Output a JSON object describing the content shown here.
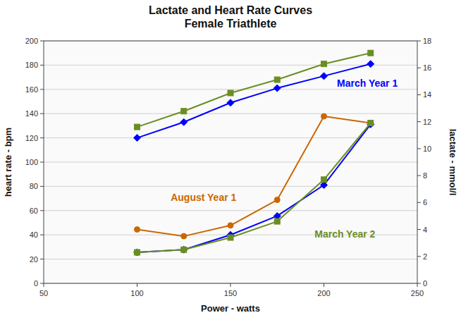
{
  "chart_data": {
    "type": "line",
    "title": "Lactate and Heart Rate Curves\nFemale Triathlete",
    "xlabel": "Power - watts",
    "ylabel": "heart rate - bpm",
    "y2label": "lactate - mmol/l",
    "x": [
      100,
      125,
      150,
      175,
      200,
      225
    ],
    "series": [
      {
        "color": "#0000FF",
        "marker": "diamond",
        "axis": "y",
        "values": [
          120,
          133,
          149,
          161,
          171,
          181
        ]
      },
      {
        "color": "#6B8E23",
        "marker": "square",
        "axis": "y",
        "values": [
          129,
          142,
          157,
          168,
          181,
          190
        ]
      },
      {
        "color": "#CC6600",
        "marker": "circle",
        "axis": "y2",
        "values": [
          4.0,
          3.5,
          4.3,
          6.2,
          12.4,
          11.9
        ]
      },
      {
        "color": "#0000FF",
        "marker": "diamond",
        "axis": "y2",
        "values": [
          2.3,
          2.5,
          3.6,
          5.0,
          7.3,
          11.8
        ]
      },
      {
        "color": "#6B8E23",
        "marker": "square",
        "axis": "y2",
        "values": [
          2.3,
          2.5,
          3.4,
          4.6,
          7.7,
          11.9
        ]
      }
    ],
    "xlim": [
      50,
      250
    ],
    "xticks": [
      50,
      100,
      150,
      200,
      250
    ],
    "ylim": [
      0,
      200
    ],
    "yticks": [
      0,
      20,
      40,
      60,
      80,
      100,
      120,
      140,
      160,
      180,
      200
    ],
    "y2lim": [
      0,
      18
    ],
    "y2ticks": [
      0,
      2,
      4,
      6,
      8,
      10,
      12,
      14,
      16,
      18
    ],
    "grid": true,
    "annotations": [
      {
        "text": "March Year 1",
        "x": 207,
        "y": 162,
        "color": "#0000FF"
      },
      {
        "text": "August Year 1",
        "x": 118,
        "y": 68,
        "color": "#CC6600"
      },
      {
        "text": "March Year 2",
        "x": 195,
        "y": 38,
        "color": "#6B8E23"
      }
    ]
  }
}
